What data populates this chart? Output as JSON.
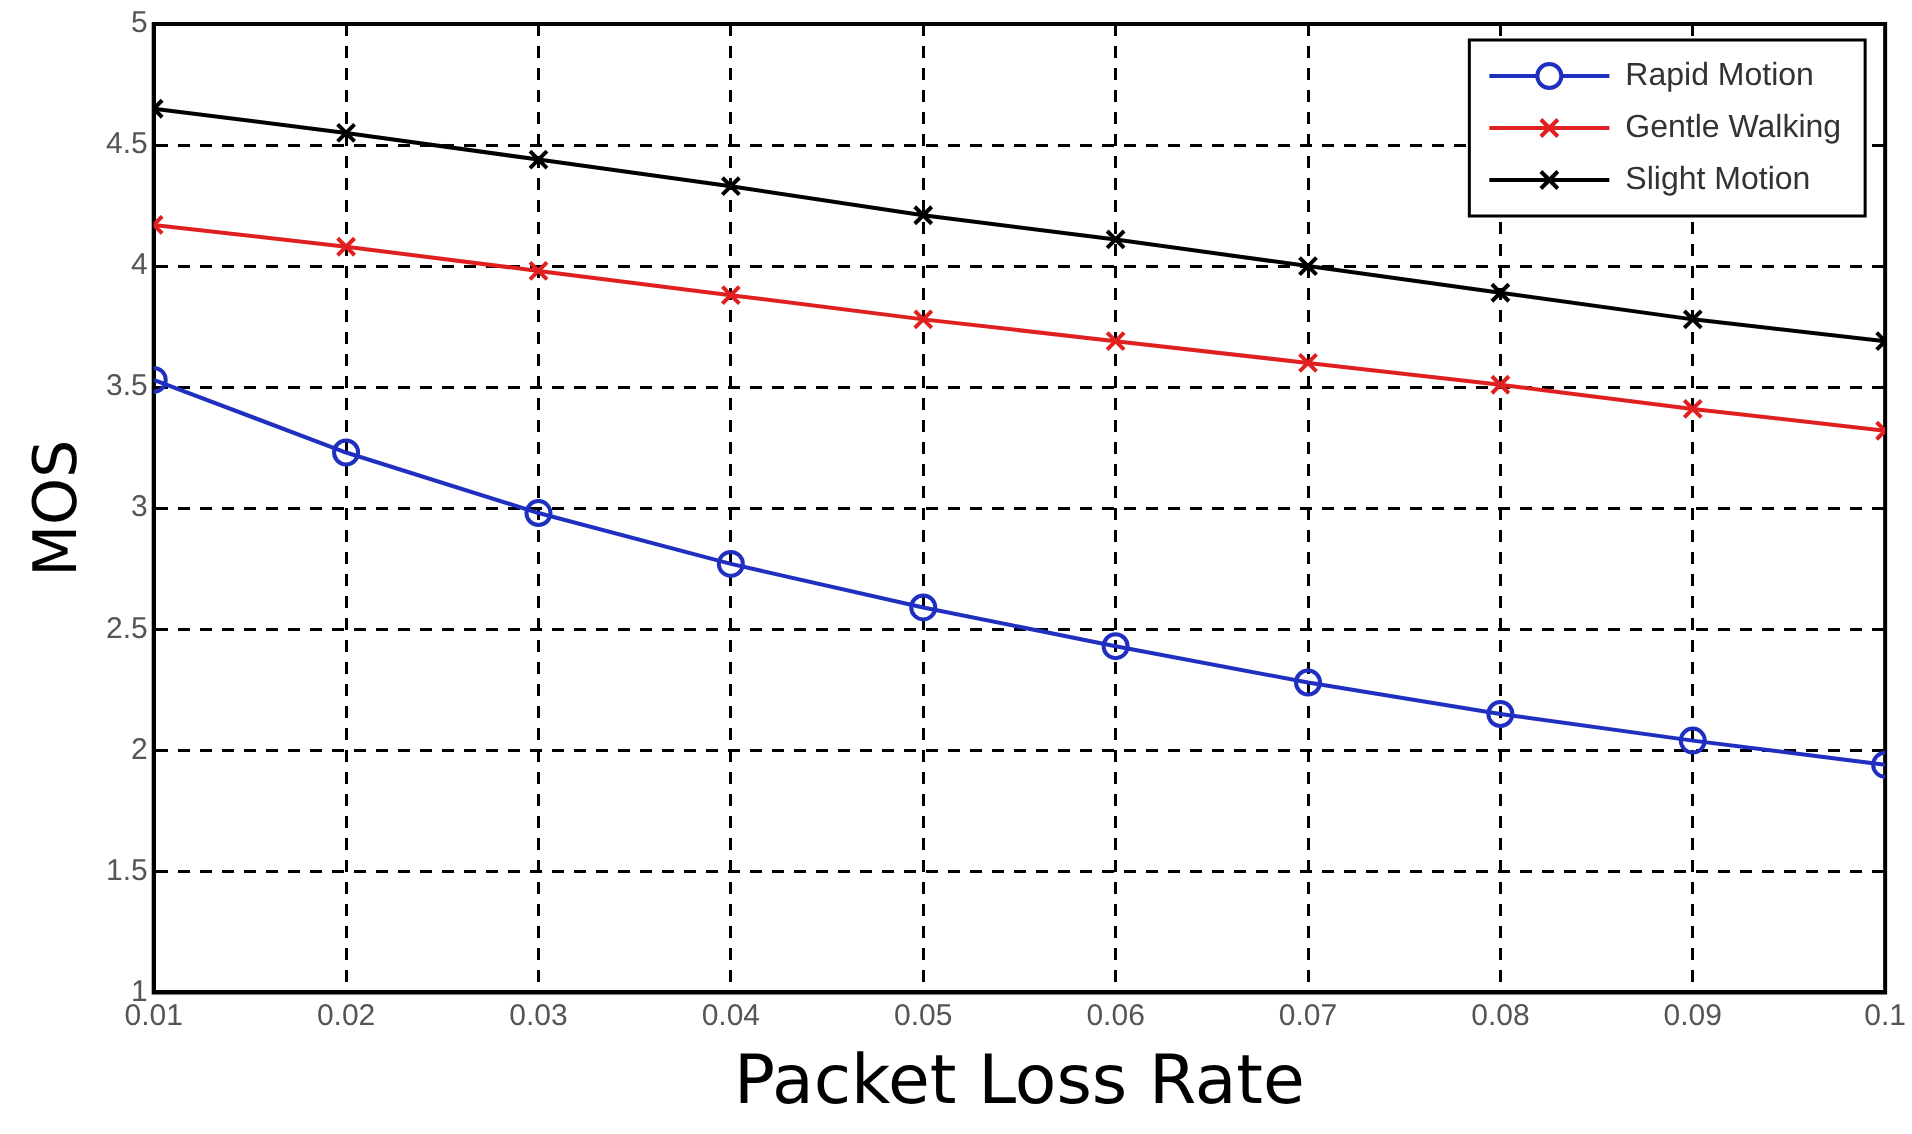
{
  "chart_data": {
    "type": "line",
    "xlabel": "Packet Loss Rate",
    "ylabel": "MOS",
    "x": [
      0.01,
      0.02,
      0.03,
      0.04,
      0.05,
      0.06,
      0.07,
      0.08,
      0.09,
      0.1
    ],
    "series": [
      {
        "name": "Rapid Motion",
        "color": "#1f2fbf",
        "marker": "circle",
        "values": [
          3.53,
          3.23,
          2.98,
          2.77,
          2.59,
          2.43,
          2.28,
          2.15,
          2.04,
          1.94
        ]
      },
      {
        "name": "Gentle Walking",
        "color": "#e02020",
        "marker": "cross",
        "values": [
          4.17,
          4.08,
          3.98,
          3.88,
          3.78,
          3.69,
          3.6,
          3.51,
          3.41,
          3.32
        ]
      },
      {
        "name": "Slight Motion",
        "color": "#000000",
        "marker": "cross",
        "values": [
          4.65,
          4.55,
          4.44,
          4.33,
          4.21,
          4.11,
          4.0,
          3.89,
          3.78,
          3.69
        ]
      }
    ],
    "xlim": [
      0.01,
      0.1
    ],
    "xticks": [
      0.01,
      0.02,
      0.03,
      0.04,
      0.05,
      0.06,
      0.07,
      0.08,
      0.09,
      0.1
    ],
    "ylim": [
      1,
      5
    ],
    "yticks": [
      1,
      1.5,
      2,
      2.5,
      3,
      3.5,
      4,
      4.5,
      5
    ],
    "grid": true,
    "legend": "top right",
    "line_style": "solid"
  }
}
